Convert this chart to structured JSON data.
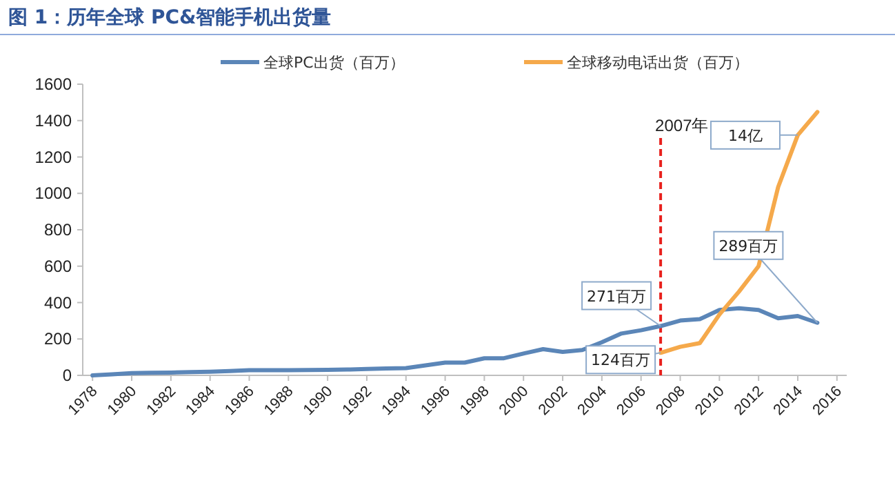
{
  "chart_data": {
    "type": "line",
    "title": "图 1：历年全球 PC&智能手机出货量",
    "x": [
      1978,
      1979,
      1980,
      1981,
      1982,
      1983,
      1984,
      1985,
      1986,
      1987,
      1988,
      1989,
      1990,
      1991,
      1992,
      1993,
      1994,
      1995,
      1996,
      1997,
      1998,
      1999,
      2000,
      2001,
      2002,
      2003,
      2004,
      2005,
      2006,
      2007,
      2008,
      2009,
      2010,
      2011,
      2012,
      2013,
      2014,
      2015
    ],
    "series": [
      {
        "name": "全球PC出货（百万）",
        "color": "#5b86b8",
        "values": [
          0,
          6,
          12,
          14,
          15,
          18,
          20,
          24,
          28,
          28,
          28,
          29,
          30,
          32,
          35,
          38,
          40,
          55,
          70,
          70,
          94,
          94,
          120,
          144,
          129,
          139,
          182,
          230,
          248,
          271,
          301,
          309,
          359,
          369,
          359,
          314,
          326,
          289
        ]
      },
      {
        "name": "全球移动电话出货（百万）",
        "color": "#f5a94b",
        "values": [
          null,
          null,
          null,
          null,
          null,
          null,
          null,
          null,
          null,
          null,
          null,
          null,
          null,
          null,
          null,
          null,
          null,
          null,
          null,
          null,
          null,
          null,
          null,
          null,
          null,
          null,
          null,
          null,
          null,
          124,
          157,
          177,
          334,
          460,
          600,
          1035,
          1320,
          1447
        ]
      }
    ],
    "xlim": [
      1977.5,
      2016.5
    ],
    "xticks": [
      1978,
      1980,
      1982,
      1984,
      1986,
      1988,
      1990,
      1992,
      1994,
      1996,
      1998,
      2000,
      2002,
      2004,
      2006,
      2008,
      2010,
      2012,
      2014,
      2016
    ],
    "ylim": [
      0,
      1600
    ],
    "yticks": [
      0,
      200,
      400,
      600,
      800,
      1000,
      1200,
      1400,
      1600
    ],
    "ref_lines": [
      {
        "axis": "x",
        "value": 2007,
        "label": "2007年",
        "color": "#e8211d",
        "line_style": "dashed"
      }
    ],
    "annotations": [
      {
        "text": "271百万",
        "x": 2007,
        "y": 271
      },
      {
        "text": "124百万",
        "x": 2007,
        "y": 124
      },
      {
        "text": "289百万",
        "x": 2015,
        "y": 289
      },
      {
        "text": "14亿",
        "x": 2014,
        "y": 1320
      }
    ],
    "legend": "top",
    "grid": false,
    "marker": "none",
    "line_style": "solid"
  }
}
